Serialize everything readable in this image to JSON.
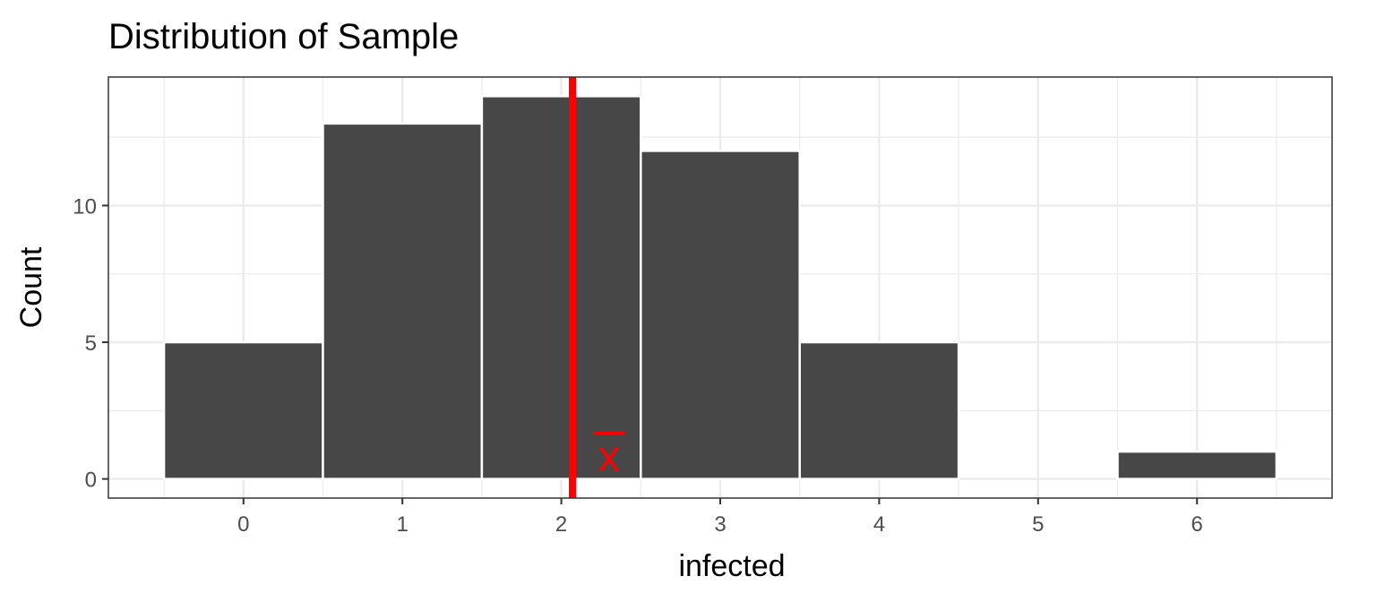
{
  "chart_data": {
    "type": "bar",
    "title": "Distribution of Sample",
    "xlabel": "infected",
    "ylabel": "Count",
    "categories": [
      0,
      1,
      2,
      3,
      4,
      5,
      6
    ],
    "values": [
      5,
      13,
      14,
      12,
      5,
      0,
      1
    ],
    "xlim": [
      -0.85,
      6.85
    ],
    "ylim": [
      -0.7,
      14.7
    ],
    "x_ticks": [
      "0",
      "1",
      "2",
      "3",
      "4",
      "5",
      "6"
    ],
    "y_ticks": [
      0,
      5,
      10
    ],
    "grid": true,
    "bar_color": "#474747",
    "mean_line": {
      "x": 2.07,
      "color": "#ff0000"
    },
    "annotation": {
      "text": "x",
      "x": 2.3,
      "y": 0.3,
      "color": "#ff0000"
    }
  }
}
